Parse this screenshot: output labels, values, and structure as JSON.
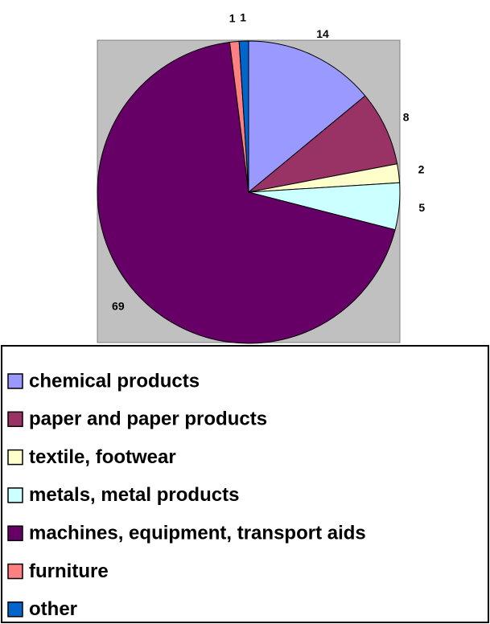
{
  "chart_data": {
    "type": "pie",
    "categories": [
      "chemical products",
      "paper and paper products",
      "textile, footwear",
      "metals, metal products",
      "machines, equipment, transport aids",
      "furniture",
      "other"
    ],
    "values": [
      14,
      8,
      2,
      5,
      69,
      1,
      1
    ],
    "colors": [
      "#9999ff",
      "#993366",
      "#ffffcc",
      "#ccffff",
      "#660066",
      "#ff8080",
      "#0066cc"
    ],
    "legend": "bottom"
  }
}
